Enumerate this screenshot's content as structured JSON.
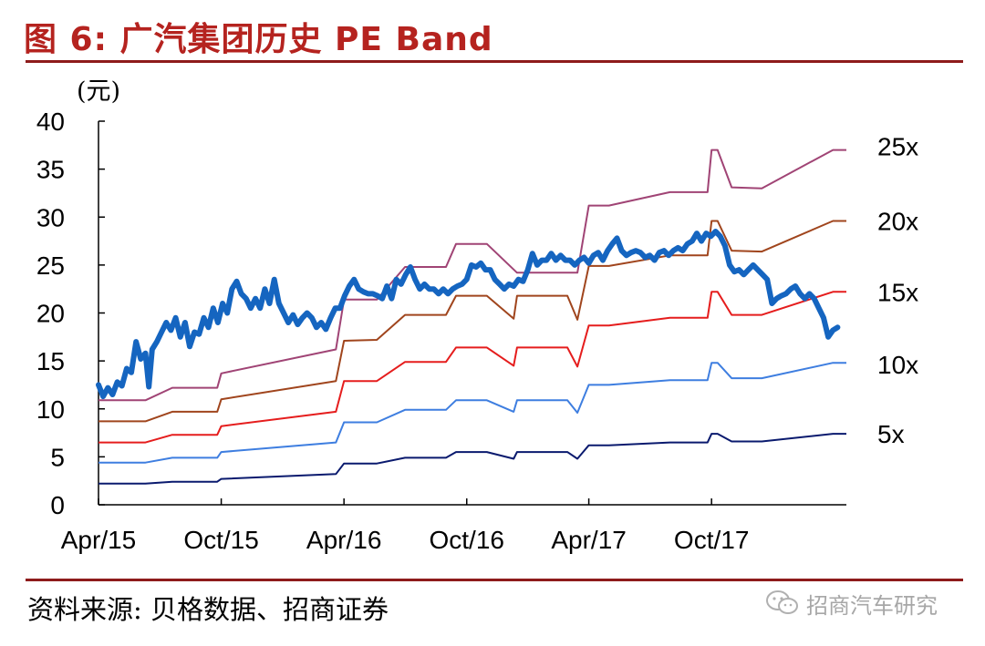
{
  "title": "图 6:  广汽集团历史 PE Band",
  "source": "资料来源:  贝格数据、招商证券",
  "watermark": "招商汽车研究",
  "colors": {
    "title": "#b5231f",
    "rule": "#8e1b1b",
    "price": "#1565c0",
    "pe25": "#a04475",
    "pe20": "#a0451d",
    "pe15": "#e51d1d",
    "pe10": "#3e7ee0",
    "pe5": "#0a1a6e"
  },
  "chart_data": {
    "type": "line",
    "y_unit_label": "(元)",
    "ylim": [
      0,
      40
    ],
    "y_ticks": [
      0,
      5,
      10,
      15,
      20,
      25,
      30,
      35,
      40
    ],
    "x_range": [
      "2015-04-01",
      "2018-04-20"
    ],
    "x_ticks": [
      {
        "date": "2015-04-01",
        "label": "Apr/15"
      },
      {
        "date": "2015-10-01",
        "label": "Oct/15"
      },
      {
        "date": "2016-04-01",
        "label": "Apr/16"
      },
      {
        "date": "2016-10-01",
        "label": "Oct/16"
      },
      {
        "date": "2017-04-01",
        "label": "Apr/17"
      },
      {
        "date": "2017-10-01",
        "label": "Oct/17"
      }
    ],
    "grid": false,
    "legend": "right-end labels",
    "price_series": {
      "points": [
        [
          "2015-04-01",
          12.5
        ],
        [
          "2015-04-08",
          11.3
        ],
        [
          "2015-04-15",
          12.2
        ],
        [
          "2015-04-22",
          11.5
        ],
        [
          "2015-04-29",
          12.8
        ],
        [
          "2015-05-06",
          12.4
        ],
        [
          "2015-05-13",
          14.2
        ],
        [
          "2015-05-20",
          13.8
        ],
        [
          "2015-05-27",
          17.0
        ],
        [
          "2015-06-03",
          15.2
        ],
        [
          "2015-06-10",
          15.8
        ],
        [
          "2015-06-15",
          12.3
        ],
        [
          "2015-06-20",
          16.2
        ],
        [
          "2015-06-27",
          17.0
        ],
        [
          "2015-07-04",
          18.0
        ],
        [
          "2015-07-11",
          19.0
        ],
        [
          "2015-07-18",
          18.2
        ],
        [
          "2015-07-25",
          19.5
        ],
        [
          "2015-08-01",
          17.5
        ],
        [
          "2015-08-08",
          19.0
        ],
        [
          "2015-08-15",
          16.5
        ],
        [
          "2015-08-22",
          18.0
        ],
        [
          "2015-08-29",
          17.8
        ],
        [
          "2015-09-05",
          19.5
        ],
        [
          "2015-09-12",
          18.5
        ],
        [
          "2015-09-19",
          20.5
        ],
        [
          "2015-09-26",
          19.0
        ],
        [
          "2015-10-03",
          21.0
        ],
        [
          "2015-10-10",
          20.0
        ],
        [
          "2015-10-17",
          22.5
        ],
        [
          "2015-10-24",
          23.3
        ],
        [
          "2015-10-31",
          22.0
        ],
        [
          "2015-11-07",
          21.5
        ],
        [
          "2015-11-14",
          20.5
        ],
        [
          "2015-11-21",
          21.5
        ],
        [
          "2015-11-28",
          20.5
        ],
        [
          "2015-12-05",
          22.5
        ],
        [
          "2015-12-12",
          21.0
        ],
        [
          "2015-12-19",
          23.5
        ],
        [
          "2015-12-26",
          21.0
        ],
        [
          "2016-01-02",
          20.0
        ],
        [
          "2016-01-09",
          19.0
        ],
        [
          "2016-01-16",
          19.8
        ],
        [
          "2016-01-23",
          18.8
        ],
        [
          "2016-01-30",
          19.5
        ],
        [
          "2016-02-06",
          20.0
        ],
        [
          "2016-02-13",
          19.5
        ],
        [
          "2016-02-20",
          18.5
        ],
        [
          "2016-02-27",
          19.0
        ],
        [
          "2016-03-05",
          18.3
        ],
        [
          "2016-03-12",
          19.5
        ],
        [
          "2016-03-19",
          20.5
        ],
        [
          "2016-03-26",
          20.5
        ],
        [
          "2016-04-02",
          21.8
        ],
        [
          "2016-04-09",
          22.8
        ],
        [
          "2016-04-16",
          23.5
        ],
        [
          "2016-04-23",
          22.5
        ],
        [
          "2016-04-30",
          22.2
        ],
        [
          "2016-05-07",
          22.0
        ],
        [
          "2016-05-14",
          22.0
        ],
        [
          "2016-05-21",
          21.8
        ],
        [
          "2016-05-28",
          21.5
        ],
        [
          "2016-06-04",
          22.8
        ],
        [
          "2016-06-11",
          21.5
        ],
        [
          "2016-06-18",
          23.5
        ],
        [
          "2016-06-25",
          23.0
        ],
        [
          "2016-07-02",
          24.0
        ],
        [
          "2016-07-09",
          24.8
        ],
        [
          "2016-07-16",
          23.5
        ],
        [
          "2016-07-23",
          22.5
        ],
        [
          "2016-07-30",
          23.0
        ],
        [
          "2016-08-06",
          22.5
        ],
        [
          "2016-08-13",
          22.5
        ],
        [
          "2016-08-20",
          22.0
        ],
        [
          "2016-08-27",
          22.5
        ],
        [
          "2016-09-03",
          22.0
        ],
        [
          "2016-09-10",
          22.5
        ],
        [
          "2016-09-17",
          22.8
        ],
        [
          "2016-09-24",
          23.0
        ],
        [
          "2016-10-01",
          23.5
        ],
        [
          "2016-10-08",
          25.0
        ],
        [
          "2016-10-15",
          24.8
        ],
        [
          "2016-10-22",
          25.2
        ],
        [
          "2016-10-29",
          24.5
        ],
        [
          "2016-11-05",
          24.5
        ],
        [
          "2016-11-12",
          23.5
        ],
        [
          "2016-11-19",
          23.0
        ],
        [
          "2016-11-26",
          22.5
        ],
        [
          "2016-12-03",
          23.0
        ],
        [
          "2016-12-10",
          22.8
        ],
        [
          "2016-12-17",
          23.5
        ],
        [
          "2016-12-24",
          23.3
        ],
        [
          "2016-12-31",
          24.5
        ],
        [
          "2017-01-07",
          26.2
        ],
        [
          "2017-01-14",
          25.0
        ],
        [
          "2017-01-21",
          25.5
        ],
        [
          "2017-01-28",
          25.5
        ],
        [
          "2017-02-04",
          26.2
        ],
        [
          "2017-02-11",
          25.5
        ],
        [
          "2017-02-18",
          26.0
        ],
        [
          "2017-02-25",
          25.5
        ],
        [
          "2017-03-04",
          25.5
        ],
        [
          "2017-03-11",
          25.0
        ],
        [
          "2017-03-18",
          25.5
        ],
        [
          "2017-03-25",
          25.8
        ],
        [
          "2017-04-01",
          25.2
        ],
        [
          "2017-04-08",
          26.0
        ],
        [
          "2017-04-15",
          26.3
        ],
        [
          "2017-04-22",
          25.5
        ],
        [
          "2017-04-29",
          26.5
        ],
        [
          "2017-05-06",
          27.2
        ],
        [
          "2017-05-13",
          27.8
        ],
        [
          "2017-05-20",
          26.5
        ],
        [
          "2017-05-27",
          26.0
        ],
        [
          "2017-06-03",
          26.3
        ],
        [
          "2017-06-10",
          26.5
        ],
        [
          "2017-06-17",
          26.3
        ],
        [
          "2017-06-24",
          25.8
        ],
        [
          "2017-07-01",
          26.0
        ],
        [
          "2017-07-08",
          25.5
        ],
        [
          "2017-07-15",
          26.3
        ],
        [
          "2017-07-22",
          26.5
        ],
        [
          "2017-07-29",
          26.0
        ],
        [
          "2017-08-05",
          26.5
        ],
        [
          "2017-08-12",
          26.8
        ],
        [
          "2017-08-19",
          26.5
        ],
        [
          "2017-08-26",
          27.2
        ],
        [
          "2017-09-02",
          27.5
        ],
        [
          "2017-09-09",
          28.3
        ],
        [
          "2017-09-16",
          27.5
        ],
        [
          "2017-09-23",
          28.3
        ],
        [
          "2017-09-30",
          28.0
        ],
        [
          "2017-10-07",
          28.5
        ],
        [
          "2017-10-14",
          28.0
        ],
        [
          "2017-10-21",
          27.0
        ],
        [
          "2017-10-28",
          25.0
        ],
        [
          "2017-11-04",
          24.3
        ],
        [
          "2017-11-11",
          24.5
        ],
        [
          "2017-11-18",
          24.0
        ],
        [
          "2017-11-25",
          24.5
        ],
        [
          "2017-12-02",
          25.0
        ],
        [
          "2017-12-09",
          24.5
        ],
        [
          "2017-12-16",
          24.0
        ],
        [
          "2017-12-23",
          23.5
        ],
        [
          "2017-12-30",
          21.0
        ],
        [
          "2018-01-06",
          21.5
        ],
        [
          "2018-01-13",
          21.8
        ],
        [
          "2018-01-20",
          22.0
        ],
        [
          "2018-01-27",
          22.5
        ],
        [
          "2018-02-03",
          22.8
        ],
        [
          "2018-02-10",
          22.0
        ],
        [
          "2018-02-17",
          21.5
        ],
        [
          "2018-02-24",
          22.0
        ],
        [
          "2018-03-03",
          21.5
        ],
        [
          "2018-03-10",
          20.5
        ],
        [
          "2018-03-17",
          19.5
        ],
        [
          "2018-03-24",
          17.5
        ],
        [
          "2018-03-31",
          18.2
        ],
        [
          "2018-04-07",
          18.5
        ]
      ]
    },
    "series": [
      {
        "name": "25x",
        "color_key": "pe25",
        "points": [
          [
            "2015-04-01",
            10.9
          ],
          [
            "2015-06-10",
            10.9
          ],
          [
            "2015-07-20",
            12.2
          ],
          [
            "2015-09-25",
            12.2
          ],
          [
            "2015-10-01",
            13.7
          ],
          [
            "2016-03-20",
            16.2
          ],
          [
            "2016-04-01",
            21.4
          ],
          [
            "2016-05-20",
            21.4
          ],
          [
            "2016-07-01",
            24.8
          ],
          [
            "2016-08-31",
            24.8
          ],
          [
            "2016-09-15",
            27.2
          ],
          [
            "2016-10-31",
            27.2
          ],
          [
            "2016-12-15",
            24.2
          ],
          [
            "2017-02-28",
            24.2
          ],
          [
            "2017-03-15",
            24.2
          ],
          [
            "2017-04-01",
            31.2
          ],
          [
            "2017-05-01",
            31.2
          ],
          [
            "2017-07-31",
            32.6
          ],
          [
            "2017-09-25",
            32.6
          ],
          [
            "2017-10-01",
            37.0
          ],
          [
            "2017-10-10",
            37.0
          ],
          [
            "2017-10-31",
            33.1
          ],
          [
            "2017-12-15",
            33.0
          ],
          [
            "2018-03-31",
            37.0
          ],
          [
            "2018-04-20",
            37.0
          ]
        ]
      },
      {
        "name": "20x",
        "color_key": "pe20",
        "points": [
          [
            "2015-04-01",
            8.7
          ],
          [
            "2015-06-10",
            8.7
          ],
          [
            "2015-07-20",
            9.7
          ],
          [
            "2015-09-25",
            9.7
          ],
          [
            "2015-10-01",
            11.0
          ],
          [
            "2016-03-20",
            12.9
          ],
          [
            "2016-04-01",
            17.1
          ],
          [
            "2016-05-20",
            17.2
          ],
          [
            "2016-07-01",
            19.8
          ],
          [
            "2016-08-31",
            19.8
          ],
          [
            "2016-09-15",
            21.8
          ],
          [
            "2016-10-31",
            21.8
          ],
          [
            "2016-12-10",
            19.4
          ],
          [
            "2016-12-15",
            21.8
          ],
          [
            "2017-02-28",
            21.8
          ],
          [
            "2017-03-15",
            19.3
          ],
          [
            "2017-04-01",
            24.9
          ],
          [
            "2017-05-01",
            24.9
          ],
          [
            "2017-07-31",
            26.0
          ],
          [
            "2017-09-25",
            26.0
          ],
          [
            "2017-10-01",
            29.6
          ],
          [
            "2017-10-10",
            29.6
          ],
          [
            "2017-10-31",
            26.5
          ],
          [
            "2017-12-15",
            26.4
          ],
          [
            "2018-03-31",
            29.6
          ],
          [
            "2018-04-20",
            29.6
          ]
        ]
      },
      {
        "name": "15x",
        "color_key": "pe15",
        "points": [
          [
            "2015-04-01",
            6.5
          ],
          [
            "2015-06-10",
            6.5
          ],
          [
            "2015-07-20",
            7.3
          ],
          [
            "2015-09-25",
            7.3
          ],
          [
            "2015-10-01",
            8.2
          ],
          [
            "2016-03-20",
            9.7
          ],
          [
            "2016-04-01",
            12.9
          ],
          [
            "2016-05-20",
            12.9
          ],
          [
            "2016-07-01",
            14.9
          ],
          [
            "2016-08-31",
            14.9
          ],
          [
            "2016-09-15",
            16.4
          ],
          [
            "2016-10-31",
            16.4
          ],
          [
            "2016-12-10",
            14.5
          ],
          [
            "2016-12-15",
            16.4
          ],
          [
            "2017-02-28",
            16.4
          ],
          [
            "2017-03-15",
            14.4
          ],
          [
            "2017-04-01",
            18.7
          ],
          [
            "2017-05-01",
            18.7
          ],
          [
            "2017-07-31",
            19.5
          ],
          [
            "2017-09-25",
            19.5
          ],
          [
            "2017-10-01",
            22.2
          ],
          [
            "2017-10-10",
            22.2
          ],
          [
            "2017-10-31",
            19.8
          ],
          [
            "2017-12-15",
            19.8
          ],
          [
            "2018-03-31",
            22.2
          ],
          [
            "2018-04-20",
            22.2
          ]
        ]
      },
      {
        "name": "10x",
        "color_key": "pe10",
        "points": [
          [
            "2015-04-01",
            4.4
          ],
          [
            "2015-06-10",
            4.4
          ],
          [
            "2015-07-20",
            4.9
          ],
          [
            "2015-09-25",
            4.9
          ],
          [
            "2015-10-01",
            5.5
          ],
          [
            "2016-03-20",
            6.5
          ],
          [
            "2016-04-01",
            8.6
          ],
          [
            "2016-05-20",
            8.6
          ],
          [
            "2016-07-01",
            9.9
          ],
          [
            "2016-08-31",
            9.9
          ],
          [
            "2016-09-15",
            10.9
          ],
          [
            "2016-10-31",
            10.9
          ],
          [
            "2016-12-10",
            9.7
          ],
          [
            "2016-12-15",
            10.9
          ],
          [
            "2017-02-28",
            10.9
          ],
          [
            "2017-03-15",
            9.6
          ],
          [
            "2017-04-01",
            12.5
          ],
          [
            "2017-05-01",
            12.5
          ],
          [
            "2017-07-31",
            13.0
          ],
          [
            "2017-09-25",
            13.0
          ],
          [
            "2017-10-01",
            14.8
          ],
          [
            "2017-10-10",
            14.8
          ],
          [
            "2017-10-31",
            13.2
          ],
          [
            "2017-12-15",
            13.2
          ],
          [
            "2018-03-31",
            14.8
          ],
          [
            "2018-04-20",
            14.8
          ]
        ]
      },
      {
        "name": "5x",
        "color_key": "pe5",
        "points": [
          [
            "2015-04-01",
            2.2
          ],
          [
            "2015-06-10",
            2.2
          ],
          [
            "2015-07-20",
            2.4
          ],
          [
            "2015-09-25",
            2.4
          ],
          [
            "2015-10-01",
            2.7
          ],
          [
            "2016-03-20",
            3.2
          ],
          [
            "2016-04-01",
            4.3
          ],
          [
            "2016-05-20",
            4.3
          ],
          [
            "2016-07-01",
            4.9
          ],
          [
            "2016-08-31",
            4.9
          ],
          [
            "2016-09-15",
            5.5
          ],
          [
            "2016-10-31",
            5.5
          ],
          [
            "2016-12-10",
            4.8
          ],
          [
            "2016-12-15",
            5.5
          ],
          [
            "2017-02-28",
            5.5
          ],
          [
            "2017-03-15",
            4.8
          ],
          [
            "2017-04-01",
            6.2
          ],
          [
            "2017-05-01",
            6.2
          ],
          [
            "2017-07-31",
            6.5
          ],
          [
            "2017-09-25",
            6.5
          ],
          [
            "2017-10-01",
            7.4
          ],
          [
            "2017-10-10",
            7.4
          ],
          [
            "2017-10-31",
            6.6
          ],
          [
            "2017-12-15",
            6.6
          ],
          [
            "2018-03-31",
            7.4
          ],
          [
            "2018-04-20",
            7.4
          ]
        ]
      }
    ]
  }
}
